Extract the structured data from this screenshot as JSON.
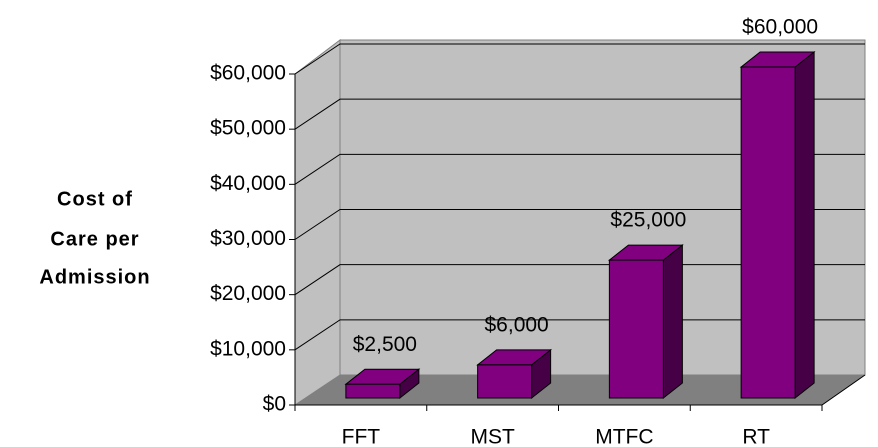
{
  "chart_data": {
    "type": "bar3d",
    "y_label": [
      "Cost of",
      "Care per",
      "Admission"
    ],
    "categories": [
      "FFT",
      "MST",
      "MTFC",
      "RT"
    ],
    "values": [
      2500,
      6000,
      25000,
      60000
    ],
    "value_labels": [
      "$2,500",
      "$6,000",
      "$25,000",
      "$60,000"
    ],
    "color": "#800080",
    "ylim": [
      0,
      60000
    ],
    "yticks": [
      {
        "value": 0,
        "label": "$0"
      },
      {
        "value": 10000,
        "label": "$10,000"
      },
      {
        "value": 20000,
        "label": "$20,000"
      },
      {
        "value": 30000,
        "label": "$30,000"
      },
      {
        "value": 40000,
        "label": "$40,000"
      },
      {
        "value": 50000,
        "label": "$50,000"
      },
      {
        "value": 60000,
        "label": "$60,000"
      }
    ],
    "grid": true
  }
}
